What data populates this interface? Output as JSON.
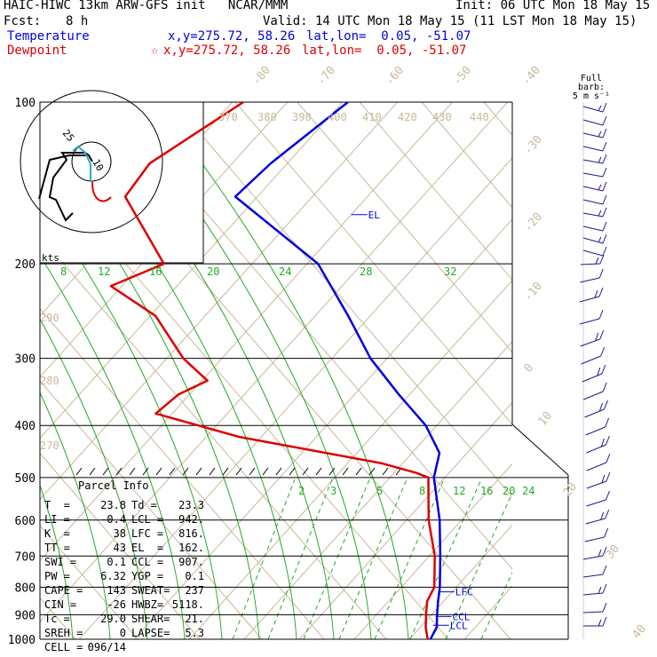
{
  "header": {
    "title": "HAIC-HIWC 13km ARW-GFS init   NCAR/MMM",
    "init": "Init: 06 UTC Mon 18 May 15",
    "fcst_label": "Fcst:",
    "fcst_value": "8 h",
    "valid": "Valid: 14 UTC Mon 18 May 15 (11 LST Mon 18 May 15)",
    "temperature_label": "Temperature",
    "temperature_xy": "x,y=275.72, 58.26",
    "temperature_latlon": "lat,lon=  0.05, -51.07",
    "dewpoint_label": "Dewpoint",
    "dewpoint_star": "☆",
    "dewpoint_xy": "x,y=275.72, 58.26",
    "dewpoint_latlon": "lat,lon=  0.05, -51.07"
  },
  "colors": {
    "temperature": "#0000dd",
    "dewpoint": "#dd0000",
    "isotherm": "#c8b89a",
    "mixing_ratio": "#22aa22",
    "isobar": "#000000",
    "barb": "#1a1a8c"
  },
  "barb_legend": {
    "title": "Full barb:",
    "unit": "5 m s⁻¹"
  },
  "hodograph": {
    "units": "kts",
    "ring_labels": [
      "25",
      "10"
    ]
  },
  "parcel_info": {
    "title": "Parcel Info",
    "rows": [
      {
        "l1": "T  =",
        "v1": "23.8",
        "l2": "Td =",
        "v2": "23.3"
      },
      {
        "l1": "LI =",
        "v1": "-0.4",
        "l2": "LCL =",
        "v2": "942."
      },
      {
        "l1": "K  =",
        "v1": "38",
        "l2": "LFC =",
        "v2": "816."
      },
      {
        "l1": "TT =",
        "v1": "43",
        "l2": "EL  =",
        "v2": "162."
      },
      {
        "l1": "SWI =",
        "v1": "0.1",
        "l2": "CCL =",
        "v2": "907."
      },
      {
        "l1": "PW =",
        "v1": "6.32",
        "l2": "YGP =",
        "v2": "0.1"
      },
      {
        "l1": "CAPE =",
        "v1": "143",
        "l2": "SWEAT=",
        "v2": "237"
      },
      {
        "l1": "CIN =",
        "v1": "-26",
        "l2": "HWBZ=",
        "v2": "5118."
      },
      {
        "l1": "Tc =",
        "v1": "29.0",
        "l2": "SHEAR=",
        "v2": "21."
      },
      {
        "l1": "SREH =",
        "v1": "0",
        "l2": "LAPSE=",
        "v2": "5.3"
      },
      {
        "l1": "CELL =",
        "v1": "096/14",
        "l2": "",
        "v2": ""
      }
    ]
  },
  "level_labels": {
    "el": "EL",
    "lfc": "LFC",
    "ccl": "CCL",
    "lcl": "LCL"
  },
  "chart_data": {
    "type": "line",
    "chart_kind": "skew-T log-P sounding",
    "y_axis_pressure_hPa": [
      100,
      200,
      300,
      400,
      500,
      600,
      700,
      800,
      900,
      1000
    ],
    "y_scale": "log",
    "isotherm_labels_C": [
      "-80",
      "-70",
      "-60",
      "-50",
      "-40",
      "-30",
      "-20",
      "-10",
      "0",
      "10",
      "20",
      "30",
      "40"
    ],
    "theta_labels_K": [
      "370",
      "380",
      "390",
      "400",
      "410",
      "420",
      "430",
      "440",
      "290",
      "280",
      "270"
    ],
    "mixing_ratio_labels_upper": [
      "8",
      "12",
      "16",
      "20",
      "24",
      "28",
      "32"
    ],
    "mixing_ratio_labels_lower": [
      "2",
      "3",
      "5",
      "8",
      "12",
      "16",
      "20",
      "24"
    ],
    "series": [
      {
        "name": "Temperature",
        "points": [
          [
            100,
            -79
          ],
          [
            130,
            -83
          ],
          [
            150,
            -84
          ],
          [
            200,
            -58
          ],
          [
            250,
            -44
          ],
          [
            300,
            -33
          ],
          [
            350,
            -22
          ],
          [
            400,
            -12
          ],
          [
            450,
            -5
          ],
          [
            500,
            -2
          ],
          [
            600,
            6
          ],
          [
            700,
            12
          ],
          [
            800,
            17
          ],
          [
            850,
            19
          ],
          [
            900,
            21
          ],
          [
            950,
            23
          ],
          [
            1000,
            23.8
          ]
        ]
      },
      {
        "name": "Dewpoint",
        "points": [
          [
            100,
            -98
          ],
          [
            130,
            -105
          ],
          [
            150,
            -104
          ],
          [
            200,
            -86
          ],
          [
            220,
            -92
          ],
          [
            250,
            -79
          ],
          [
            300,
            -67
          ],
          [
            330,
            -59
          ],
          [
            350,
            -62
          ],
          [
            380,
            -63
          ],
          [
            420,
            -44
          ],
          [
            470,
            -14
          ],
          [
            490,
            -6
          ],
          [
            500,
            -3
          ],
          [
            600,
            4
          ],
          [
            700,
            11
          ],
          [
            800,
            16
          ],
          [
            850,
            17
          ],
          [
            900,
            19
          ],
          [
            950,
            21
          ],
          [
            1000,
            23.3
          ]
        ]
      }
    ],
    "levels_hPa": {
      "EL": 162,
      "LFC": 816,
      "CCL": 907,
      "LCL": 942
    },
    "wind_profile": "wind barbs along right margin, 100-1000 hPa"
  }
}
